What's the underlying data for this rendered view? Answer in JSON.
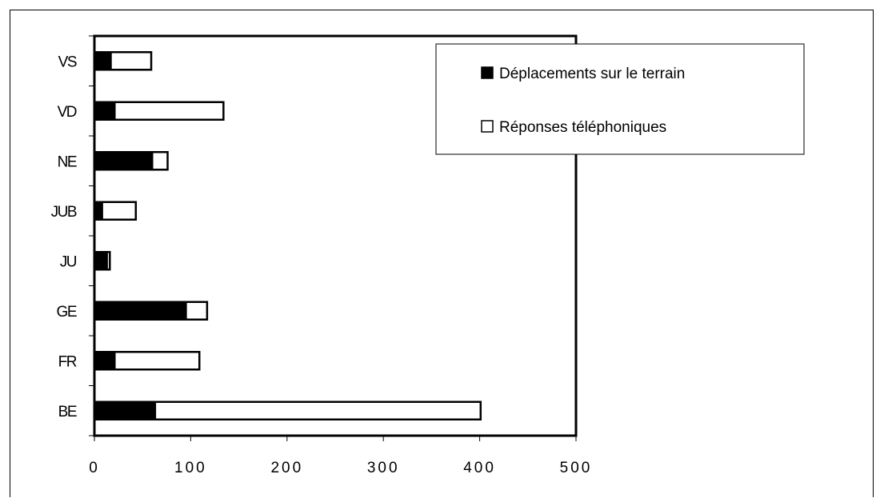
{
  "chart_data": {
    "type": "bar",
    "orientation": "horizontal",
    "stacked": true,
    "categories": [
      "BE",
      "FR",
      "GE",
      "JU",
      "JUB",
      "NE",
      "VD",
      "VS"
    ],
    "series": [
      {
        "name": "Déplacements sur le terrain",
        "color": "#000000",
        "values": [
          63,
          21,
          95,
          13,
          8,
          60,
          21,
          17
        ]
      },
      {
        "name": "Réponses téléphoniques",
        "color": "#ffffff",
        "values": [
          338,
          88,
          22,
          3,
          35,
          16,
          113,
          42
        ]
      }
    ],
    "xlim": [
      0,
      500
    ],
    "xticks": [
      "0",
      "100",
      "200",
      "300",
      "400",
      "500"
    ],
    "grid": false,
    "legend_position": "top-right"
  }
}
